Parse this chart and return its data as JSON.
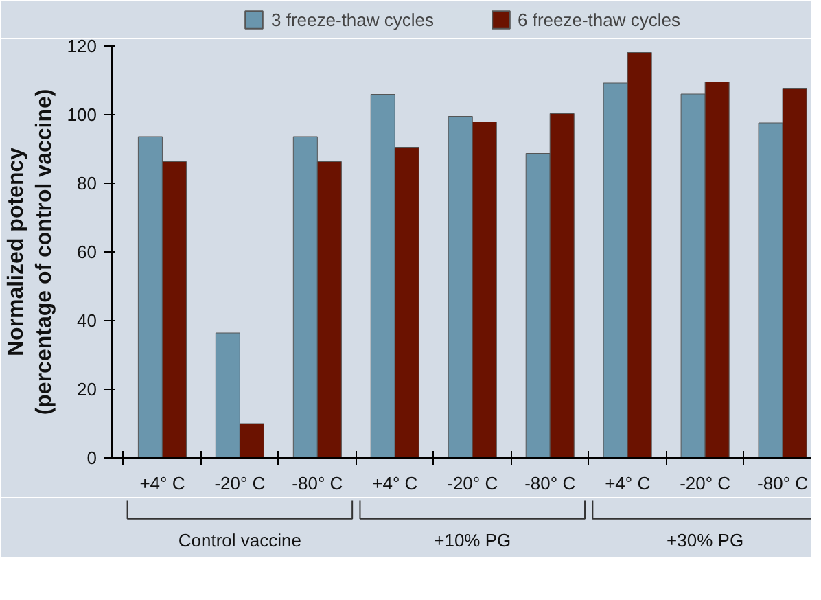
{
  "chart_data": {
    "type": "bar",
    "ylabel": "Normalized potency\n(percentage of control vaccine)",
    "categories": [
      "+4° C",
      "-20° C",
      "-80° C",
      "+4° C",
      "-20° C",
      "-80° C",
      "+4° C",
      "-20° C",
      "-80° C"
    ],
    "series": [
      {
        "name": "3 freeze-thaw cycles",
        "color": "#6a96ad",
        "values": [
          93.6,
          36.4,
          93.6,
          105.9,
          99.5,
          88.7,
          109.2,
          106,
          97.6
        ]
      },
      {
        "name": "6 freeze-thaw cycles",
        "color": "#6b1200",
        "values": [
          86.3,
          10,
          86.3,
          90.5,
          97.9,
          100.3,
          118.1,
          109.5,
          107.7
        ]
      }
    ],
    "ylim": [
      0,
      120
    ],
    "yticks": [
      0,
      20,
      40,
      60,
      80,
      100,
      120
    ],
    "grid": false,
    "legend": "top",
    "annotations": [
      "Control vaccine",
      "+10% PG",
      "+30% PG"
    ]
  }
}
